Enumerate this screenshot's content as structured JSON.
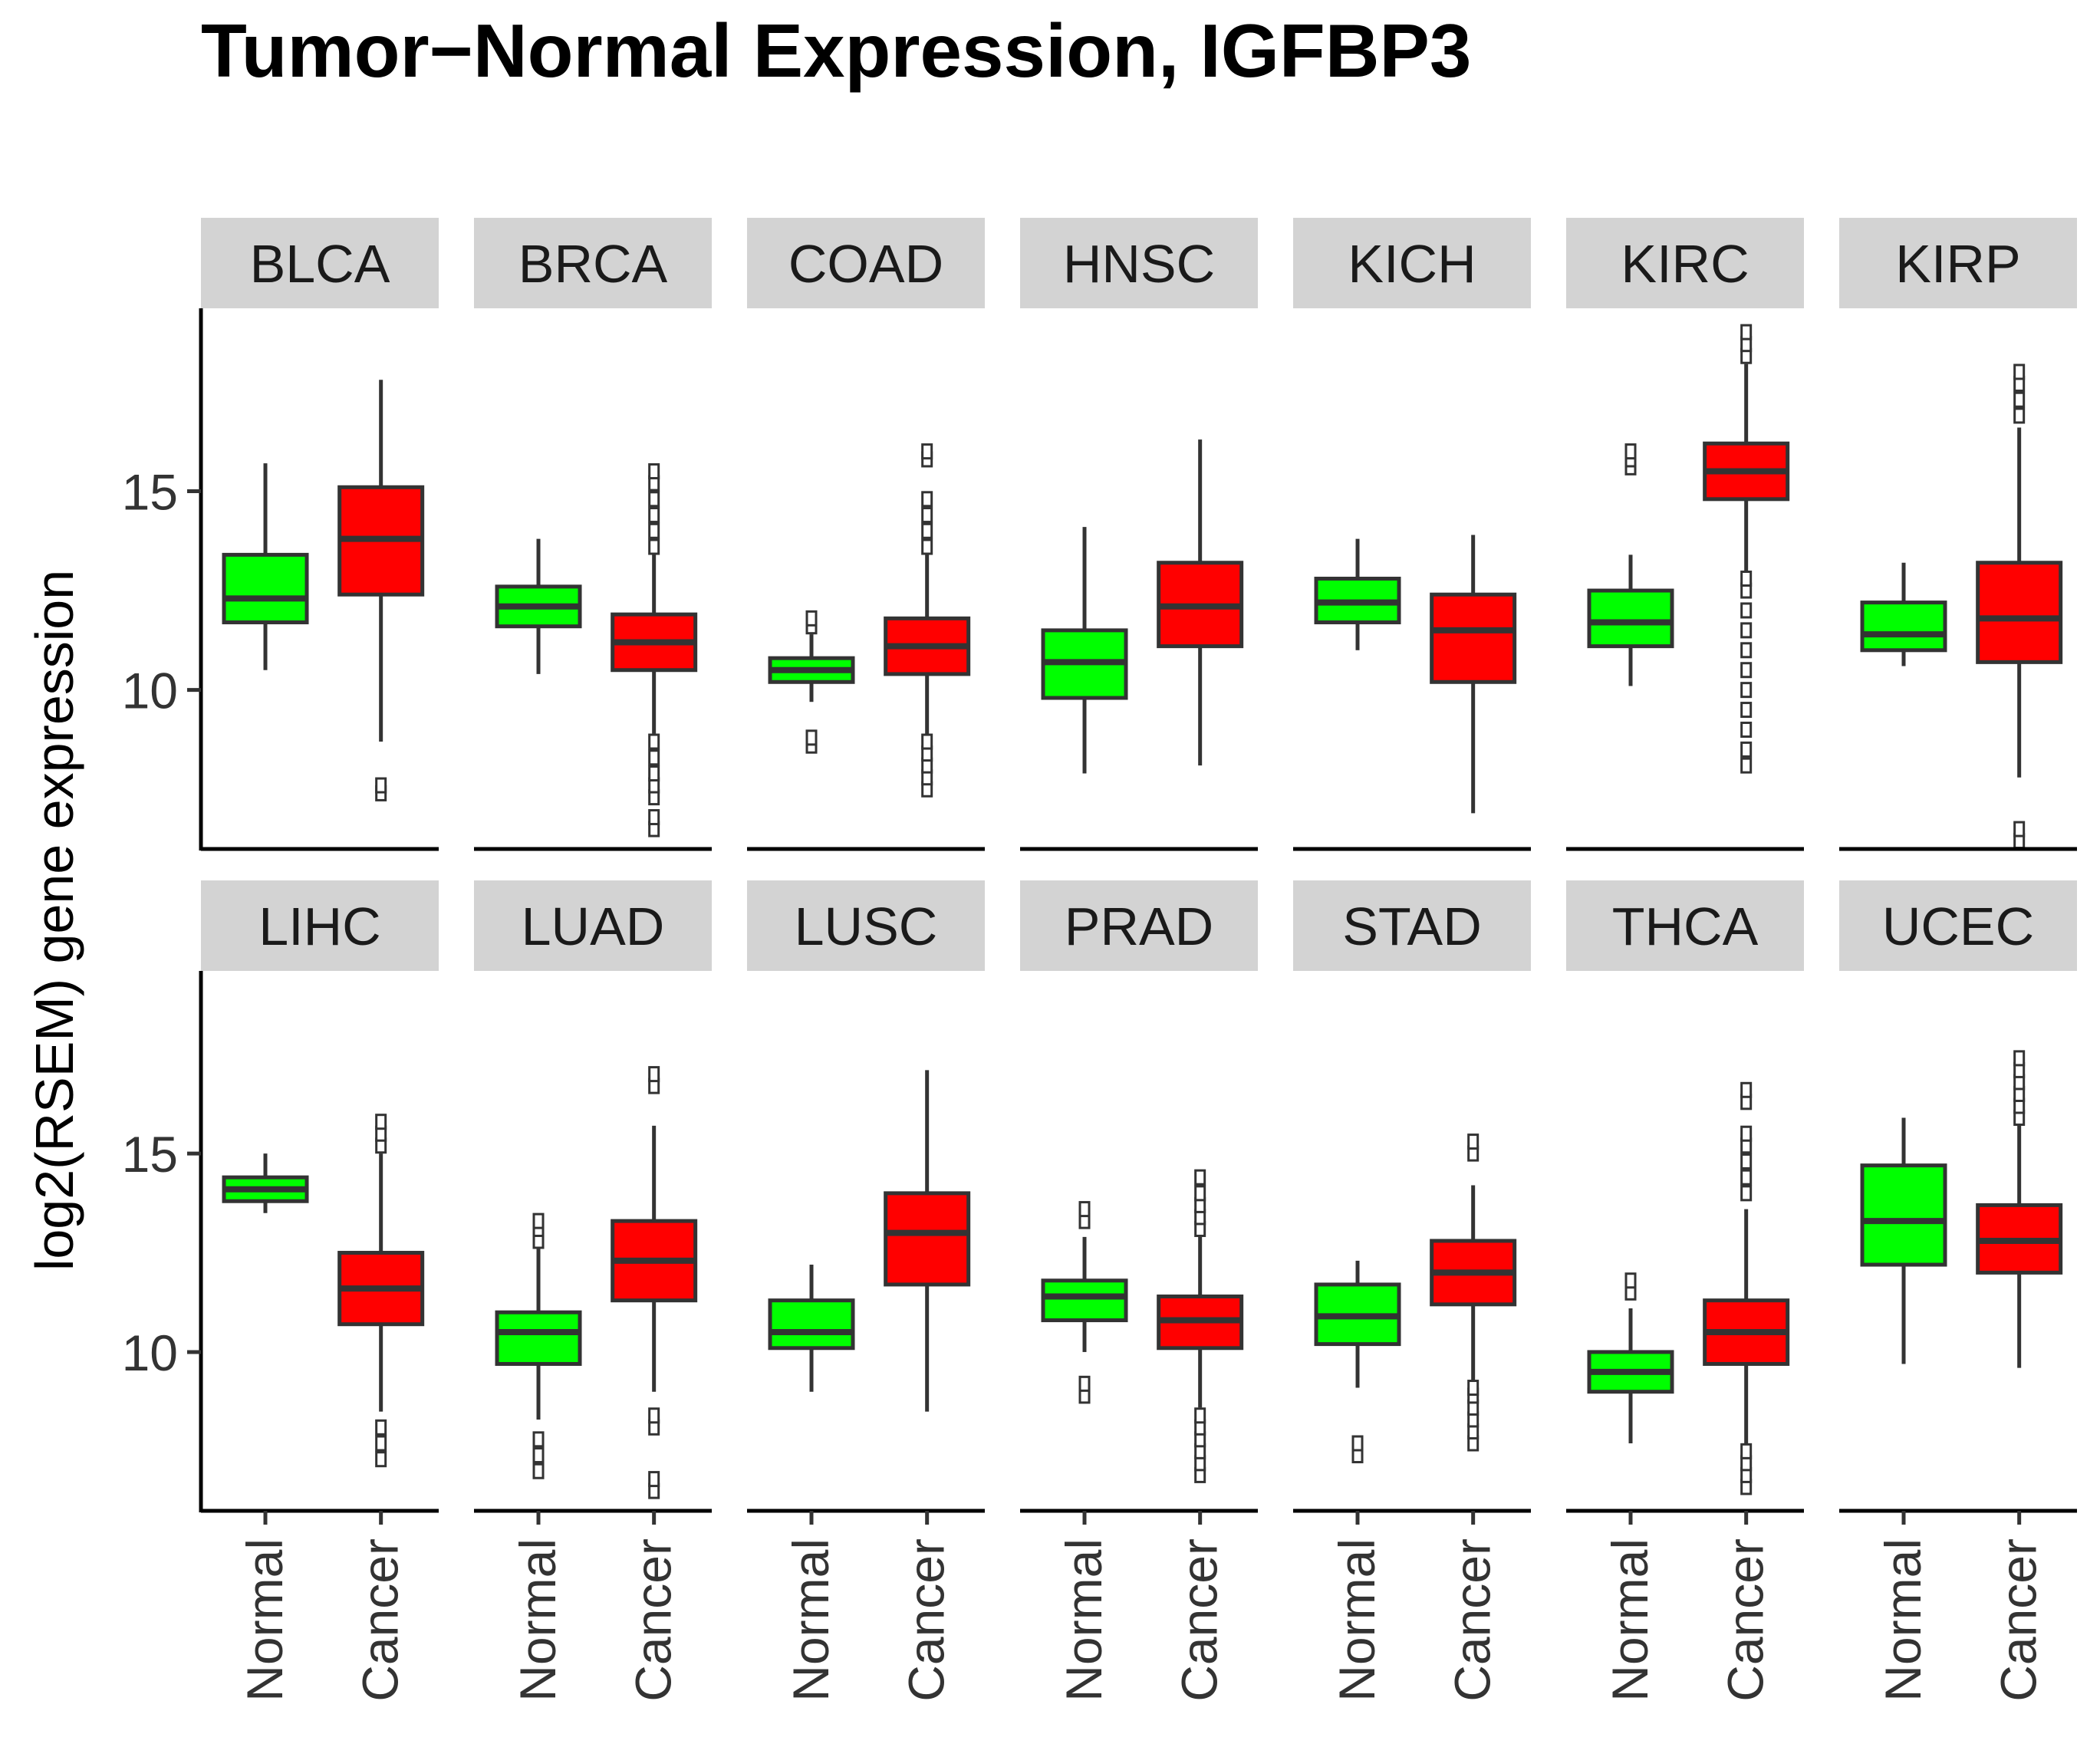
{
  "chart_data": {
    "type": "boxplot",
    "title": "Tumor−Normal Expression,  IGFBP3",
    "ylabel": "log2(RSEM) gene expression",
    "xlabel": "",
    "ylim": [
      6.0,
      19.6
    ],
    "yticks": [
      10,
      15
    ],
    "ytick_labels": [
      "10",
      "15"
    ],
    "groups": [
      "Normal",
      "Cancer"
    ],
    "colors": {
      "Normal": "#00ff00",
      "Cancer": "#ff0000",
      "strip": "#d3d3d3",
      "line": "#333333"
    },
    "panels": [
      {
        "name": "BLCA",
        "Normal": {
          "lower": 10.5,
          "q1": 11.7,
          "median": 12.3,
          "q3": 13.4,
          "upper": 15.7,
          "outliers": []
        },
        "Cancer": {
          "lower": 8.7,
          "q1": 12.4,
          "median": 13.8,
          "q3": 15.1,
          "upper": 17.8,
          "outliers": [
            7.4,
            7.6
          ]
        }
      },
      {
        "name": "BRCA",
        "Normal": {
          "lower": 10.4,
          "q1": 11.6,
          "median": 12.1,
          "q3": 12.6,
          "upper": 13.8,
          "outliers": []
        },
        "Cancer": {
          "lower": 8.9,
          "q1": 10.5,
          "median": 11.2,
          "q3": 11.9,
          "upper": 13.5,
          "outliers": [
            6.5,
            6.8,
            7.3,
            7.6,
            7.9,
            8.3,
            8.7,
            13.6,
            14.0,
            14.4,
            14.8,
            15.2,
            15.5
          ]
        }
      },
      {
        "name": "COAD",
        "Normal": {
          "lower": 9.7,
          "q1": 10.2,
          "median": 10.5,
          "q3": 10.8,
          "upper": 11.4,
          "outliers": [
            8.6,
            8.8,
            11.6,
            11.8
          ]
        },
        "Cancer": {
          "lower": 8.8,
          "q1": 10.4,
          "median": 11.1,
          "q3": 11.8,
          "upper": 13.4,
          "outliers": [
            7.5,
            7.8,
            8.1,
            8.4,
            8.7,
            13.6,
            14.0,
            14.4,
            14.8,
            15.8,
            16.0
          ]
        }
      },
      {
        "name": "HNSC",
        "Normal": {
          "lower": 7.9,
          "q1": 9.8,
          "median": 10.7,
          "q3": 11.5,
          "upper": 14.1,
          "outliers": []
        },
        "Cancer": {
          "lower": 8.1,
          "q1": 11.1,
          "median": 12.1,
          "q3": 13.2,
          "upper": 16.3,
          "outliers": []
        }
      },
      {
        "name": "KICH",
        "Normal": {
          "lower": 11.0,
          "q1": 11.7,
          "median": 12.2,
          "q3": 12.8,
          "upper": 13.8,
          "outliers": []
        },
        "Cancer": {
          "lower": 6.9,
          "q1": 10.2,
          "median": 11.5,
          "q3": 12.4,
          "upper": 13.9,
          "outliers": []
        }
      },
      {
        "name": "KIRC",
        "Normal": {
          "lower": 10.1,
          "q1": 11.1,
          "median": 11.7,
          "q3": 12.5,
          "upper": 13.4,
          "outliers": [
            15.6,
            15.8,
            16.0
          ]
        },
        "Cancer": {
          "lower": 13.0,
          "q1": 14.8,
          "median": 15.5,
          "q3": 16.2,
          "upper": 18.2,
          "outliers": [
            8.1,
            8.5,
            9.0,
            9.5,
            10.0,
            10.5,
            11.0,
            11.5,
            12.0,
            12.5,
            12.8,
            18.4,
            18.7,
            19.0
          ]
        }
      },
      {
        "name": "KIRP",
        "Normal": {
          "lower": 10.6,
          "q1": 11.0,
          "median": 11.4,
          "q3": 12.2,
          "upper": 13.2,
          "outliers": []
        },
        "Cancer": {
          "lower": 7.8,
          "q1": 10.7,
          "median": 11.8,
          "q3": 13.2,
          "upper": 16.6,
          "outliers": [
            6.2,
            6.5,
            16.9,
            17.3,
            17.7,
            18.0
          ]
        }
      },
      {
        "name": "LIHC",
        "Normal": {
          "lower": 13.5,
          "q1": 13.8,
          "median": 14.1,
          "q3": 14.4,
          "upper": 15.0,
          "outliers": []
        },
        "Cancer": {
          "lower": 8.5,
          "q1": 10.7,
          "median": 11.6,
          "q3": 12.5,
          "upper": 15.0,
          "outliers": [
            7.3,
            7.7,
            8.1,
            15.2,
            15.5,
            15.8
          ]
        }
      },
      {
        "name": "LUAD",
        "Normal": {
          "lower": 8.3,
          "q1": 9.7,
          "median": 10.5,
          "q3": 11.0,
          "upper": 12.6,
          "outliers": [
            7.0,
            7.4,
            7.8,
            12.8,
            13.1,
            13.3
          ]
        },
        "Cancer": {
          "lower": 9.0,
          "q1": 11.3,
          "median": 12.3,
          "q3": 13.3,
          "upper": 15.7,
          "outliers": [
            6.5,
            6.8,
            8.1,
            8.4,
            16.7,
            17.0
          ]
        }
      },
      {
        "name": "LUSC",
        "Normal": {
          "lower": 9.0,
          "q1": 10.1,
          "median": 10.5,
          "q3": 11.3,
          "upper": 12.2,
          "outliers": []
        },
        "Cancer": {
          "lower": 8.5,
          "q1": 11.7,
          "median": 13.0,
          "q3": 14.0,
          "upper": 17.1,
          "outliers": []
        }
      },
      {
        "name": "PRAD",
        "Normal": {
          "lower": 10.0,
          "q1": 10.8,
          "median": 11.4,
          "q3": 11.8,
          "upper": 12.9,
          "outliers": [
            8.9,
            9.2,
            13.3,
            13.6
          ]
        },
        "Cancer": {
          "lower": 8.6,
          "q1": 10.1,
          "median": 10.8,
          "q3": 11.4,
          "upper": 12.9,
          "outliers": [
            6.9,
            7.2,
            7.5,
            7.8,
            8.1,
            8.4,
            13.1,
            13.4,
            13.7,
            14.0,
            14.4
          ]
        }
      },
      {
        "name": "STAD",
        "Normal": {
          "lower": 9.1,
          "q1": 10.2,
          "median": 10.9,
          "q3": 11.7,
          "upper": 12.3,
          "outliers": [
            7.4,
            7.7
          ]
        },
        "Cancer": {
          "lower": 9.3,
          "q1": 11.2,
          "median": 12.0,
          "q3": 12.8,
          "upper": 14.2,
          "outliers": [
            7.7,
            8.0,
            8.3,
            8.6,
            8.9,
            9.1,
            15.0,
            15.3
          ]
        }
      },
      {
        "name": "THCA",
        "Normal": {
          "lower": 7.7,
          "q1": 9.0,
          "median": 9.5,
          "q3": 10.0,
          "upper": 11.1,
          "outliers": [
            11.5,
            11.8
          ]
        },
        "Cancer": {
          "lower": 7.7,
          "q1": 9.7,
          "median": 10.5,
          "q3": 11.3,
          "upper": 13.6,
          "outliers": [
            6.6,
            6.9,
            7.2,
            7.5,
            14.0,
            14.4,
            14.8,
            15.2,
            15.5,
            16.3,
            16.6
          ]
        }
      },
      {
        "name": "UCEC",
        "Normal": {
          "lower": 9.7,
          "q1": 12.2,
          "median": 13.3,
          "q3": 14.7,
          "upper": 15.9,
          "outliers": []
        },
        "Cancer": {
          "lower": 9.6,
          "q1": 12.0,
          "median": 12.8,
          "q3": 13.7,
          "upper": 15.7,
          "outliers": [
            15.9,
            16.2,
            16.5,
            16.8,
            17.1,
            17.4
          ]
        }
      }
    ]
  }
}
